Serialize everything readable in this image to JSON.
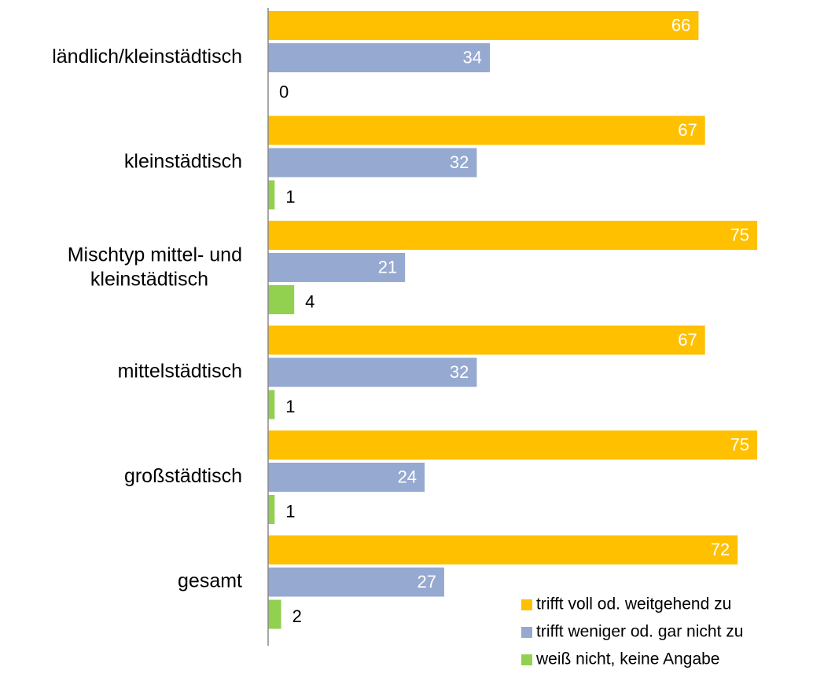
{
  "chart_data": {
    "type": "barh",
    "categories": [
      "ländlich/kleinstädtisch",
      "kleinstädtisch",
      "Mischtyp mittel- und kleinstädtisch",
      "mittelstädtisch",
      "großstädtisch",
      "gesamt"
    ],
    "series": [
      {
        "name": "trifft voll od. weitgehend zu",
        "color": "#ffc000",
        "values": [
          66,
          67,
          75,
          67,
          75,
          72
        ]
      },
      {
        "name": "trifft weniger od. gar nicht zu",
        "color": "#95a9d1",
        "values": [
          34,
          32,
          21,
          32,
          24,
          27
        ]
      },
      {
        "name": "weiß nicht, keine Angabe",
        "color": "#92d050",
        "values": [
          0,
          1,
          4,
          1,
          1,
          2
        ]
      }
    ],
    "xlim": [
      0,
      85
    ],
    "legend": "lower right"
  }
}
